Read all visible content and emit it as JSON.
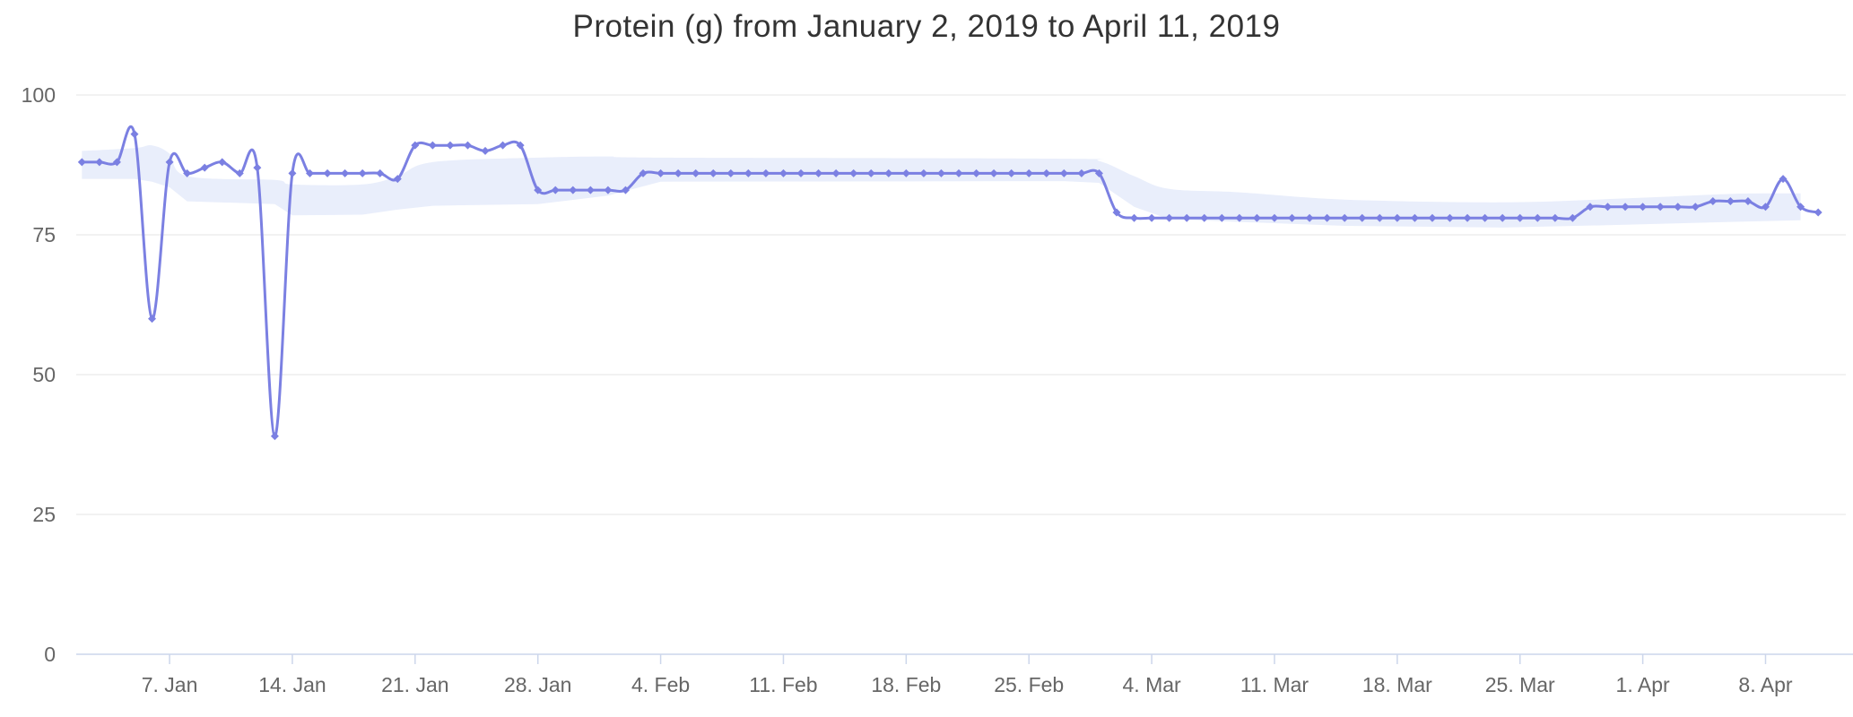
{
  "title": "Protein (g) from January 2, 2019 to April 11, 2019",
  "colors": {
    "line": "#7b80e2",
    "marker": "#7b80e2",
    "band": "#e9eefb",
    "gridline": "#e6e6e6",
    "axis_line": "#ccd6eb",
    "tick": "#ccd6eb",
    "title_text": "#333333",
    "axis_text": "#666666",
    "background": "#ffffff"
  },
  "chart_data": {
    "type": "line",
    "title": "Protein (g) from January 2, 2019 to April 11, 2019",
    "series_name": "Protein (g)",
    "xlabel": "",
    "ylabel": "",
    "grid": "horizontal-only",
    "legend": "none",
    "ylim": [
      0,
      105
    ],
    "y_ticks": [
      0,
      25,
      50,
      75,
      100
    ],
    "x_tick_labels": [
      "7. Jan",
      "14. Jan",
      "21. Jan",
      "28. Jan",
      "4. Feb",
      "11. Feb",
      "18. Feb",
      "25. Feb",
      "4. Mar",
      "11. Mar",
      "18. Mar",
      "25. Mar",
      "1. Apr",
      "8. Apr"
    ],
    "x_tick_indices": [
      5,
      12,
      19,
      26,
      33,
      40,
      47,
      54,
      61,
      68,
      75,
      82,
      89,
      96
    ],
    "x": [
      "Jan 2",
      "Jan 3",
      "Jan 4",
      "Jan 5",
      "Jan 6",
      "Jan 7",
      "Jan 8",
      "Jan 9",
      "Jan 10",
      "Jan 11",
      "Jan 12",
      "Jan 13",
      "Jan 14",
      "Jan 15",
      "Jan 16",
      "Jan 17",
      "Jan 18",
      "Jan 19",
      "Jan 20",
      "Jan 21",
      "Jan 22",
      "Jan 23",
      "Jan 24",
      "Jan 25",
      "Jan 26",
      "Jan 27",
      "Jan 28",
      "Jan 29",
      "Jan 30",
      "Jan 31",
      "Feb 1",
      "Feb 2",
      "Feb 3",
      "Feb 4",
      "Feb 5",
      "Feb 6",
      "Feb 7",
      "Feb 8",
      "Feb 9",
      "Feb 10",
      "Feb 11",
      "Feb 12",
      "Feb 13",
      "Feb 14",
      "Feb 15",
      "Feb 16",
      "Feb 17",
      "Feb 18",
      "Feb 19",
      "Feb 20",
      "Feb 21",
      "Feb 22",
      "Feb 23",
      "Feb 24",
      "Feb 25",
      "Feb 26",
      "Feb 27",
      "Feb 28",
      "Mar 1",
      "Mar 2",
      "Mar 3",
      "Mar 4",
      "Mar 5",
      "Mar 6",
      "Mar 7",
      "Mar 8",
      "Mar 9",
      "Mar 10",
      "Mar 11",
      "Mar 12",
      "Mar 13",
      "Mar 14",
      "Mar 15",
      "Mar 16",
      "Mar 17",
      "Mar 18",
      "Mar 19",
      "Mar 20",
      "Mar 21",
      "Mar 22",
      "Mar 23",
      "Mar 24",
      "Mar 25",
      "Mar 26",
      "Mar 27",
      "Mar 28",
      "Mar 29",
      "Mar 30",
      "Mar 31",
      "Apr 1",
      "Apr 2",
      "Apr 3",
      "Apr 4",
      "Apr 5",
      "Apr 6",
      "Apr 7",
      "Apr 8",
      "Apr 9",
      "Apr 10",
      "Apr 11"
    ],
    "values": [
      88,
      88,
      88,
      93,
      60,
      88,
      86,
      87,
      88,
      86,
      87,
      39,
      86,
      86,
      86,
      86,
      86,
      86,
      85,
      91,
      91,
      91,
      91,
      90,
      91,
      91,
      83,
      83,
      83,
      83,
      83,
      83,
      86,
      86,
      86,
      86,
      86,
      86,
      86,
      86,
      86,
      86,
      86,
      86,
      86,
      86,
      86,
      86,
      86,
      86,
      86,
      86,
      86,
      86,
      86,
      86,
      86,
      86,
      86,
      79,
      78,
      78,
      78,
      78,
      78,
      78,
      78,
      78,
      78,
      78,
      78,
      78,
      78,
      78,
      78,
      78,
      78,
      78,
      78,
      78,
      78,
      78,
      78,
      78,
      78,
      78,
      80,
      80,
      80,
      80,
      80,
      80,
      80,
      81,
      81,
      81,
      80,
      85,
      80,
      79
    ],
    "band": {
      "description": "light shaded range band behind the line, [day_index, low, high]",
      "points": [
        [
          0,
          85,
          90
        ],
        [
          3,
          85,
          90.5
        ],
        [
          4,
          84.5,
          91
        ],
        [
          5,
          83.5,
          89.5
        ],
        [
          6,
          81,
          85.5
        ],
        [
          11,
          80.5,
          84.8
        ],
        [
          12,
          78.5,
          84
        ],
        [
          16,
          78.6,
          84
        ],
        [
          18,
          79.5,
          85.5
        ],
        [
          20,
          80.2,
          88
        ],
        [
          26,
          80.5,
          88.8
        ],
        [
          30,
          82,
          89
        ],
        [
          33,
          84.5,
          88.8
        ],
        [
          56,
          84.6,
          88.6
        ],
        [
          58,
          84.3,
          88.2
        ],
        [
          60,
          80,
          85.5
        ],
        [
          62,
          77.8,
          83.2
        ],
        [
          66,
          77.3,
          82.6
        ],
        [
          72,
          76.6,
          81.3
        ],
        [
          81,
          76.3,
          80.8
        ],
        [
          88,
          76.8,
          81.5
        ],
        [
          94,
          77.3,
          82.3
        ],
        [
          98,
          77.6,
          82.4
        ]
      ]
    }
  }
}
